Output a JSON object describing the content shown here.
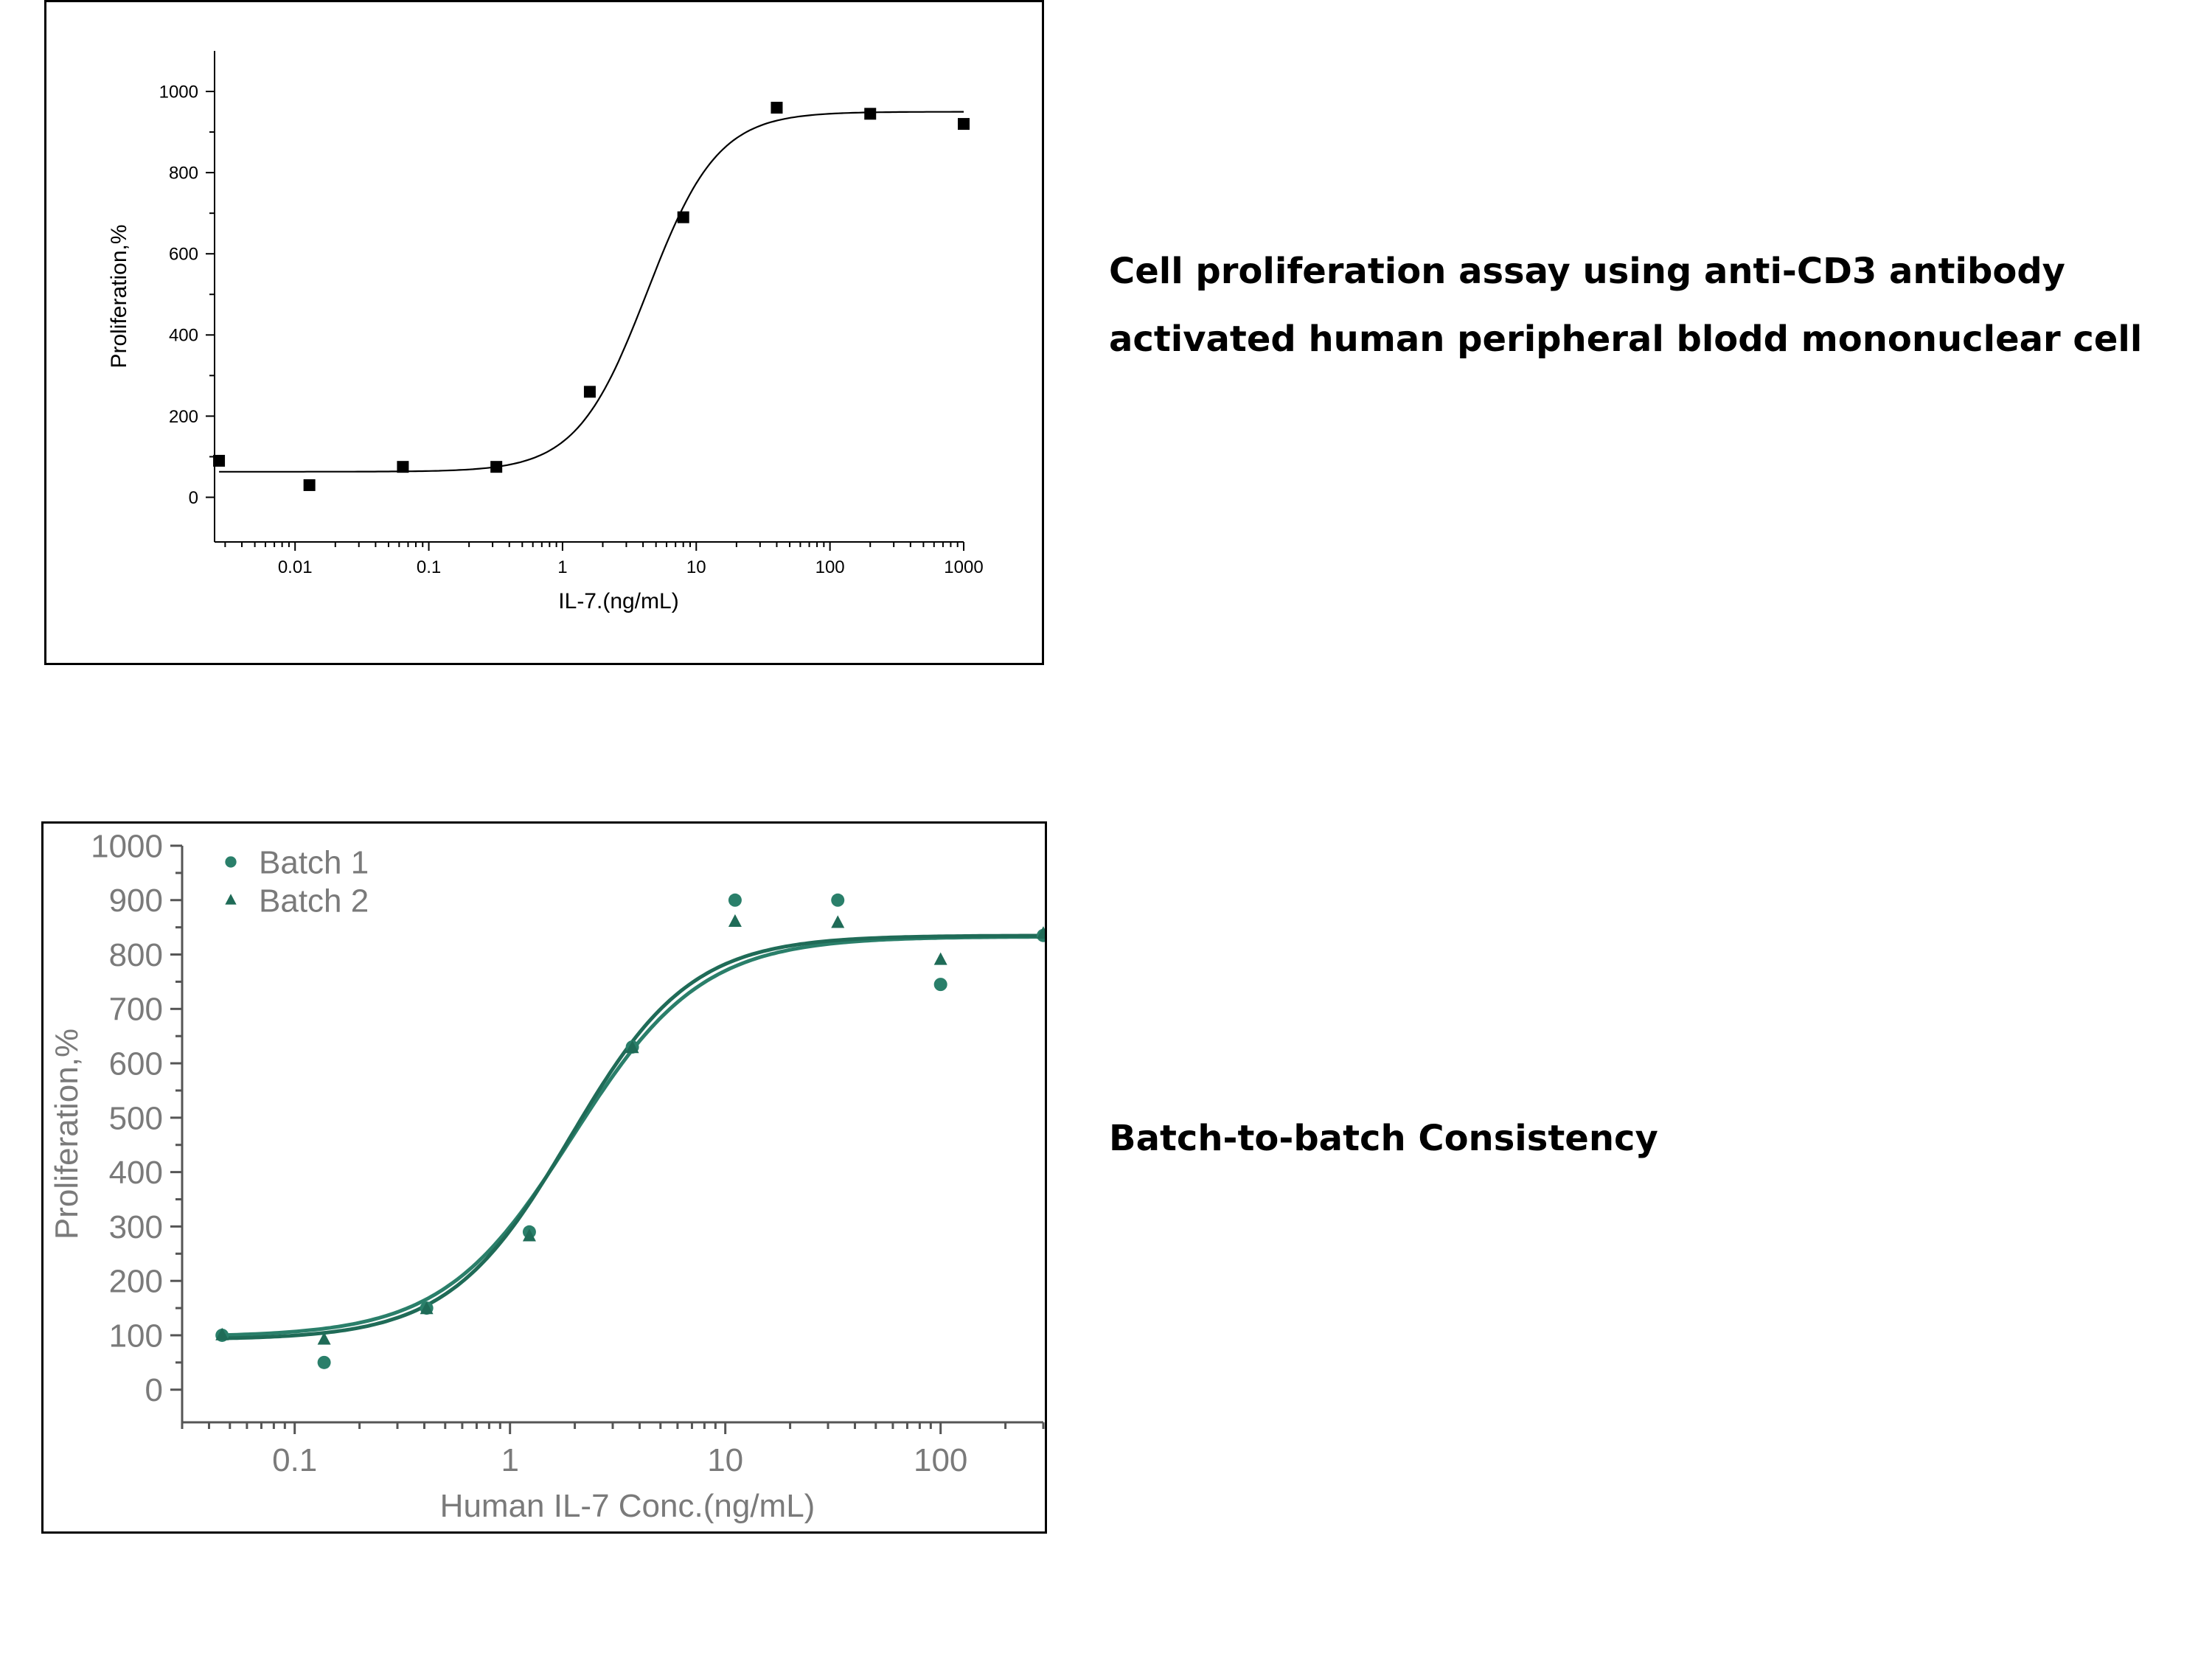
{
  "captions": {
    "assay": "Cell proliferation assay using anti-CD3 antibody activated human peripheral blodd mononuclear cell",
    "consistency": "Batch-to-batch Consistency"
  },
  "chart_data": [
    {
      "type": "scatter",
      "title": "",
      "xlabel": "IL-7.(ng/mL)",
      "ylabel": "Proliferation,%",
      "x_scale": "log",
      "xlim": [
        0.0025,
        1000
      ],
      "ylim": [
        -110,
        1100
      ],
      "x_ticks": [
        0.01,
        0.1,
        1,
        10,
        100,
        1000
      ],
      "x_tick_labels": [
        "0.01",
        "0.1",
        "1",
        "10",
        "100",
        "1000"
      ],
      "y_ticks": [
        0,
        200,
        400,
        600,
        800,
        1000
      ],
      "y_tick_labels": [
        "0",
        "200",
        "400",
        "600",
        "800",
        "1000"
      ],
      "grid": false,
      "series": [
        {
          "marker": "square",
          "color": "#000000",
          "x": [
            0.0027,
            0.0128,
            0.064,
            0.32,
            1.6,
            8,
            40,
            200,
            1000
          ],
          "y": [
            90,
            30,
            75,
            75,
            260,
            690,
            960,
            945,
            920
          ]
        }
      ],
      "fit": {
        "type": "sigmoid",
        "bottom": 63,
        "top": 950,
        "ec50": 4.3,
        "hill": 1.65,
        "color": "#000000"
      }
    },
    {
      "type": "scatter",
      "title": "",
      "xlabel": "Human IL-7 Conc.(ng/mL)",
      "ylabel": "Proliferation,%",
      "x_scale": "log",
      "xlim": [
        0.03,
        300
      ],
      "ylim": [
        -60,
        1000
      ],
      "x_ticks": [
        0.1,
        1,
        10,
        100
      ],
      "x_tick_labels": [
        "0.1",
        "1",
        "10",
        "100"
      ],
      "y_ticks": [
        0,
        100,
        200,
        300,
        400,
        500,
        600,
        700,
        800,
        900,
        1000
      ],
      "y_tick_labels": [
        "0",
        "100",
        "200",
        "300",
        "400",
        "500",
        "600",
        "700",
        "800",
        "900",
        "1000"
      ],
      "grid": false,
      "legend": "top-left",
      "series": [
        {
          "name": "Batch 1",
          "marker": "circle",
          "color": "#2a7f6a",
          "x": [
            0.046,
            0.137,
            0.41,
            1.23,
            3.7,
            11.1,
            33.3,
            100,
            300
          ],
          "y": [
            100,
            50,
            150,
            290,
            630,
            900,
            900,
            745,
            835
          ],
          "fit": {
            "bottom": 97,
            "top": 833,
            "ec50": 1.95,
            "hill": 1.45
          }
        },
        {
          "name": "Batch 2",
          "marker": "triangle",
          "color": "#1f6b57",
          "x": [
            0.046,
            0.137,
            0.41,
            1.23,
            3.7,
            11.1,
            33.3,
            100,
            300
          ],
          "y": [
            100,
            92,
            148,
            282,
            628,
            860,
            858,
            790,
            838
          ],
          "fit": {
            "bottom": 92,
            "top": 835,
            "ec50": 1.9,
            "hill": 1.55
          }
        }
      ]
    }
  ]
}
